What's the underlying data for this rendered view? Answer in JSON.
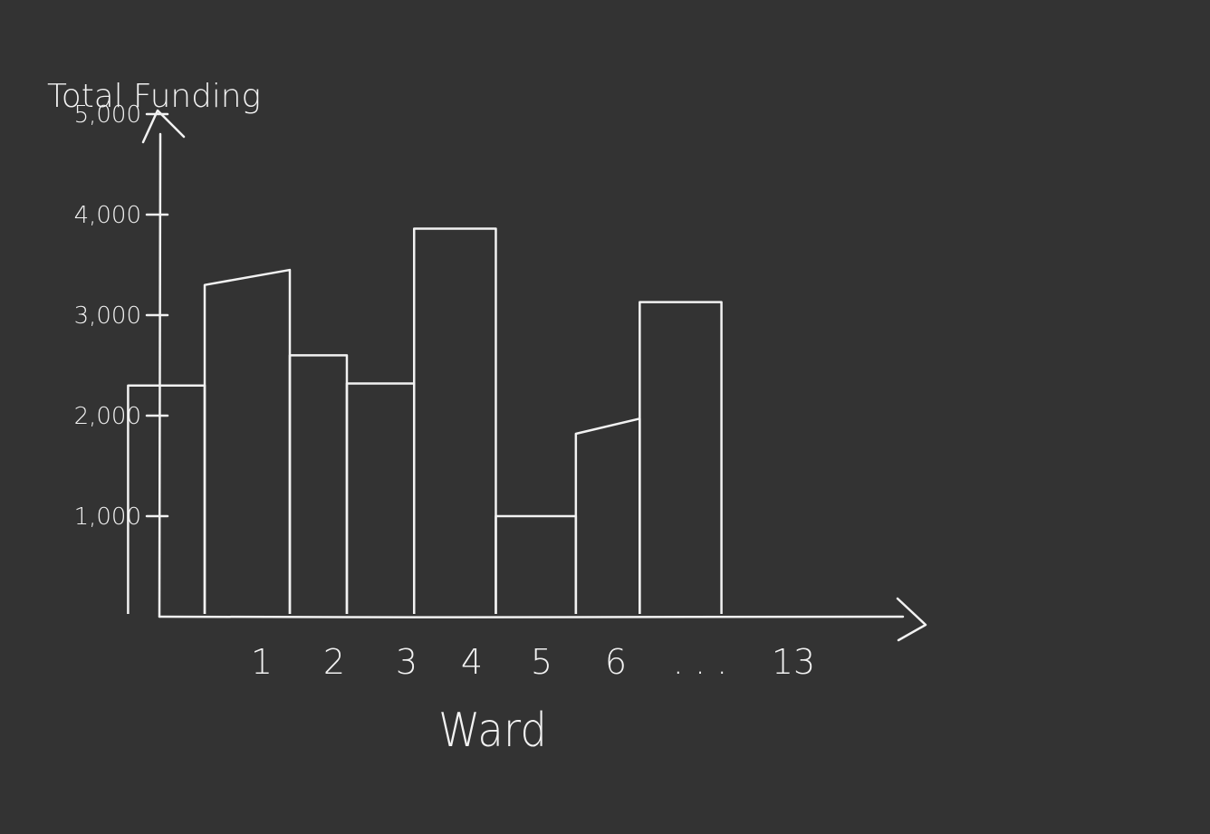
{
  "colors": {
    "background": "#333333",
    "ink": "#f2f2f2"
  },
  "chart_data": {
    "type": "bar",
    "title": "",
    "ylabel": "Total Funding",
    "xlabel": "Ward",
    "ylim": [
      0,
      5000
    ],
    "y_ticks": [
      {
        "value": 1000,
        "label": "1,000"
      },
      {
        "value": 2000,
        "label": "2,000"
      },
      {
        "value": 3000,
        "label": "3,000"
      },
      {
        "value": 4000,
        "label": "4,000"
      },
      {
        "value": 5000,
        "label": "5,000"
      }
    ],
    "x_ticks": [
      "1",
      "2",
      "3",
      "4",
      "5",
      "6",
      ". . .",
      "13"
    ],
    "grid": false,
    "legend": "none",
    "bars": [
      {
        "start": 0.6,
        "end": 1.5,
        "value_left": 2300,
        "value_right": 2300
      },
      {
        "start": 1.5,
        "end": 2.5,
        "value_left": 3300,
        "value_right": 3450
      },
      {
        "start": 2.5,
        "end": 3.17,
        "value_left": 2600,
        "value_right": 2600
      },
      {
        "start": 3.17,
        "end": 3.96,
        "value_left": 2320,
        "value_right": 2320
      },
      {
        "start": 3.96,
        "end": 4.92,
        "value_left": 3860,
        "value_right": 3860
      },
      {
        "start": 4.92,
        "end": 5.86,
        "value_left": 1000,
        "value_right": 1000
      },
      {
        "start": 5.86,
        "end": 6.61,
        "value_left": 1820,
        "value_right": 1970
      },
      {
        "start": 6.61,
        "end": 7.57,
        "value_left": 3130,
        "value_right": 3130
      }
    ]
  }
}
